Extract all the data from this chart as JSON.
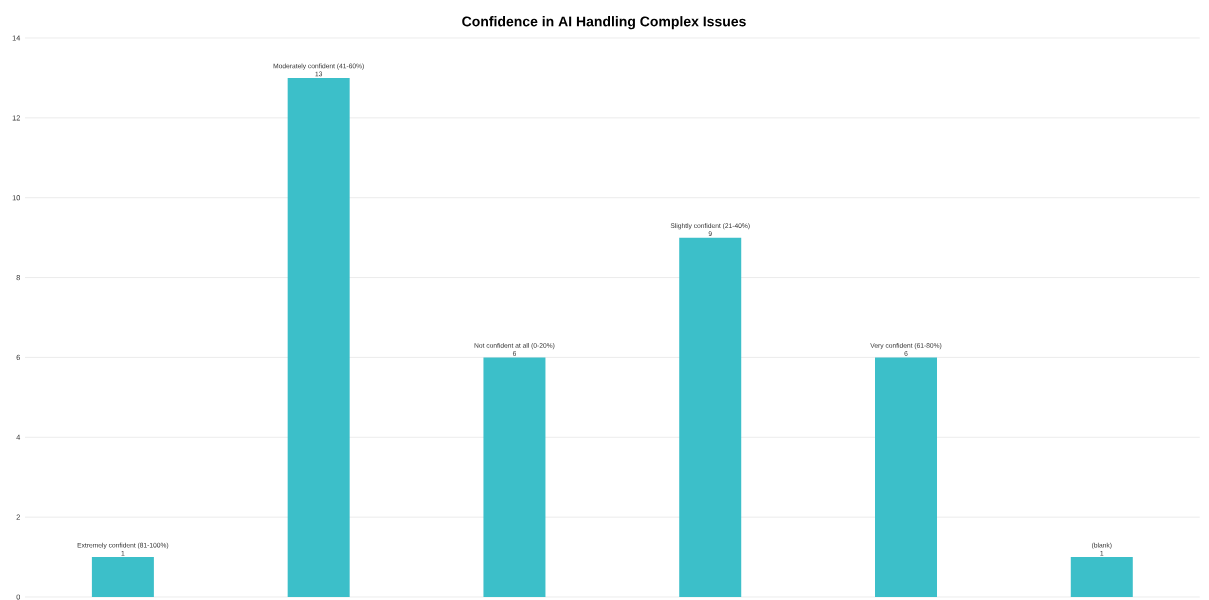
{
  "chart_data": {
    "type": "bar",
    "title": "Confidence in AI Handling Complex Issues",
    "categories": [
      "Extremely confident (81-100%)",
      "Moderately confident (41-60%)",
      "Not confident at all (0-20%)",
      "Slightly confident (21-40%)",
      "Very confident (61-80%)",
      "(blank)"
    ],
    "values": [
      1,
      13,
      6,
      9,
      6,
      1
    ],
    "color": "#3cbfc9",
    "ylim": [
      0,
      14
    ],
    "yticks": [
      0,
      2,
      4,
      6,
      8,
      10,
      12,
      14
    ],
    "grid": "y",
    "data_labels": true
  }
}
